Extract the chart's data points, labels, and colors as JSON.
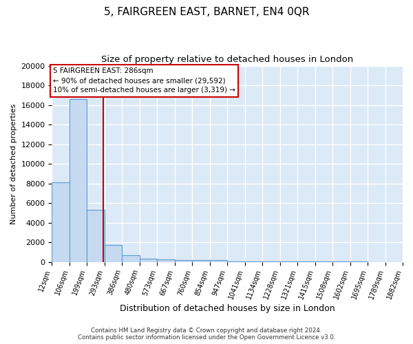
{
  "title": "5, FAIRGREEN EAST, BARNET, EN4 0QR",
  "subtitle": "Size of property relative to detached houses in London",
  "xlabel": "Distribution of detached houses by size in London",
  "ylabel": "Number of detached properties",
  "bin_edges": [
    12,
    106,
    199,
    293,
    386,
    480,
    573,
    667,
    760,
    854,
    947,
    1041,
    1134,
    1228,
    1321,
    1415,
    1508,
    1602,
    1695,
    1789,
    1882
  ],
  "bar_heights": [
    8100,
    16600,
    5300,
    1750,
    700,
    330,
    230,
    200,
    180,
    170,
    50,
    30,
    20,
    15,
    10,
    8,
    5,
    4,
    3,
    2
  ],
  "bar_color": "#c5d9f0",
  "bar_edge_color": "#5b9bd5",
  "background_color": "#dce9f7",
  "grid_color": "#ffffff",
  "red_line_x": 286,
  "ylim": [
    0,
    20000
  ],
  "yticks": [
    0,
    2000,
    4000,
    6000,
    8000,
    10000,
    12000,
    14000,
    16000,
    18000,
    20000
  ],
  "annotation_text": "5 FAIRGREEN EAST: 286sqm\n← 90% of detached houses are smaller (29,592)\n10% of semi-detached houses are larger (3,319) →",
  "annotation_box_color": "#ffffff",
  "annotation_border_color": "#cc0000",
  "footer_line1": "Contains HM Land Registry data © Crown copyright and database right 2024.",
  "footer_line2": "Contains public sector information licensed under the Open Government Licence v3.0.",
  "title_fontsize": 11,
  "subtitle_fontsize": 9.5,
  "xlabel_fontsize": 9,
  "ylabel_fontsize": 8,
  "tick_label_rotation": 70,
  "tick_label_fontsize": 7
}
